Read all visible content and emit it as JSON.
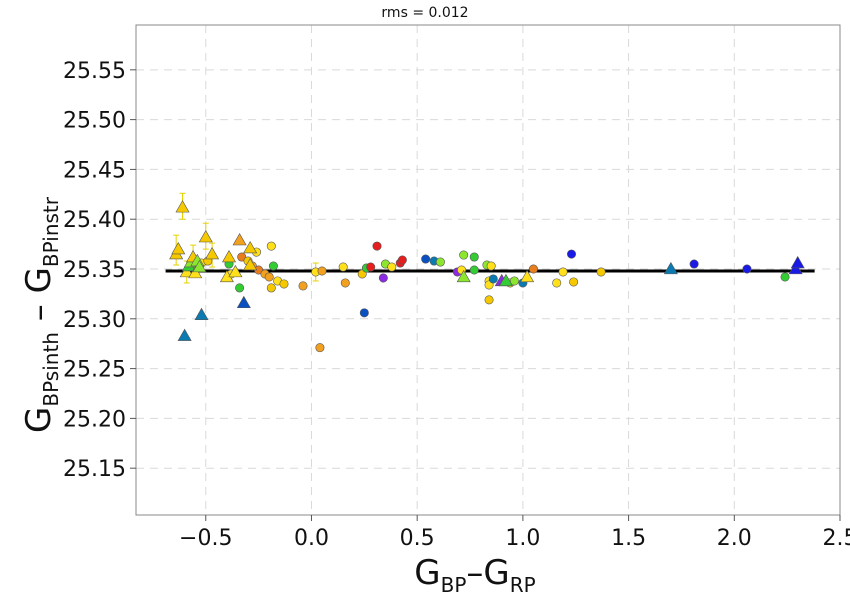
{
  "chart_data": {
    "type": "scatter",
    "title": "rms = 0.012",
    "xlabel": {
      "main": "G",
      "sub1": "BP",
      "dash": "–",
      "main2": "G",
      "sub2": "RP"
    },
    "ylabel": {
      "main": "G",
      "sub1": "BPsinth",
      "dash": " – ",
      "main2": "G",
      "sub2": "BPinstr"
    },
    "xlim": [
      -0.83,
      2.5
    ],
    "ylim": [
      25.103,
      25.595
    ],
    "xticks": [
      -0.5,
      0.0,
      0.5,
      1.0,
      1.5,
      2.0,
      2.5
    ],
    "xtick_labels": [
      "−0.5",
      "0.0",
      "0.5",
      "1.0",
      "1.5",
      "2.0",
      "2.5"
    ],
    "yticks": [
      25.15,
      25.2,
      25.25,
      25.3,
      25.35,
      25.4,
      25.45,
      25.5,
      25.55
    ],
    "ytick_labels": [
      "25.15",
      "25.20",
      "25.25",
      "25.30",
      "25.35",
      "25.40",
      "25.45",
      "25.50",
      "25.55"
    ],
    "grid": true,
    "fit_line": {
      "x": [
        -0.69,
        2.38
      ],
      "y": [
        25.348,
        25.348
      ]
    },
    "colors": {
      "violet": "#8a2be2",
      "blue": "#1a1ae6",
      "dblue": "#0a50c0",
      "teal": "#0a7ab0",
      "green": "#33cc33",
      "lgreen": "#8ce62e",
      "yellow": "#ffe01a",
      "gold": "#f5c800",
      "orange": "#f2a020",
      "dorange": "#e87d1e",
      "red": "#e61e1e",
      "line": "#000000",
      "grid": "#d9d9d9",
      "frame": "#888888",
      "errbar": "#e6d200"
    },
    "series": [
      {
        "name": "circles",
        "marker": "circle",
        "points": [
          {
            "x": -0.55,
            "y": 25.35,
            "c": "lgreen"
          },
          {
            "x": -0.52,
            "y": 25.356,
            "c": "yellow"
          },
          {
            "x": -0.49,
            "y": 25.358,
            "c": "gold"
          },
          {
            "x": -0.39,
            "y": 25.355,
            "c": "green"
          },
          {
            "x": -0.38,
            "y": 25.345,
            "c": "yellow"
          },
          {
            "x": -0.34,
            "y": 25.331,
            "c": "green"
          },
          {
            "x": -0.33,
            "y": 25.362,
            "c": "dorange"
          },
          {
            "x": -0.3,
            "y": 25.358,
            "c": "gold"
          },
          {
            "x": -0.28,
            "y": 25.353,
            "c": "orange"
          },
          {
            "x": -0.26,
            "y": 25.367,
            "c": "yellow"
          },
          {
            "x": -0.25,
            "y": 25.349,
            "c": "dorange"
          },
          {
            "x": -0.22,
            "y": 25.345,
            "c": "orange"
          },
          {
            "x": -0.2,
            "y": 25.342,
            "c": "orange"
          },
          {
            "x": -0.19,
            "y": 25.373,
            "c": "yellow"
          },
          {
            "x": -0.19,
            "y": 25.331,
            "c": "gold"
          },
          {
            "x": -0.18,
            "y": 25.353,
            "c": "green"
          },
          {
            "x": -0.16,
            "y": 25.338,
            "c": "yellow"
          },
          {
            "x": -0.13,
            "y": 25.335,
            "c": "gold"
          },
          {
            "x": -0.04,
            "y": 25.333,
            "c": "orange"
          },
          {
            "x": 0.02,
            "y": 25.347,
            "c": "yellow"
          },
          {
            "x": 0.04,
            "y": 25.271,
            "c": "orange"
          },
          {
            "x": 0.05,
            "y": 25.348,
            "c": "orange"
          },
          {
            "x": 0.15,
            "y": 25.352,
            "c": "yellow"
          },
          {
            "x": 0.16,
            "y": 25.336,
            "c": "orange"
          },
          {
            "x": 0.24,
            "y": 25.345,
            "c": "gold"
          },
          {
            "x": 0.25,
            "y": 25.306,
            "c": "dblue"
          },
          {
            "x": 0.26,
            "y": 25.351,
            "c": "green"
          },
          {
            "x": 0.28,
            "y": 25.352,
            "c": "red"
          },
          {
            "x": 0.31,
            "y": 25.373,
            "c": "red"
          },
          {
            "x": 0.34,
            "y": 25.341,
            "c": "violet"
          },
          {
            "x": 0.35,
            "y": 25.355,
            "c": "lgreen"
          },
          {
            "x": 0.38,
            "y": 25.352,
            "c": "yellow"
          },
          {
            "x": 0.42,
            "y": 25.356,
            "c": "red"
          },
          {
            "x": 0.43,
            "y": 25.359,
            "c": "red"
          },
          {
            "x": 0.54,
            "y": 25.36,
            "c": "dblue"
          },
          {
            "x": 0.58,
            "y": 25.358,
            "c": "teal"
          },
          {
            "x": 0.61,
            "y": 25.357,
            "c": "lgreen"
          },
          {
            "x": 0.69,
            "y": 25.347,
            "c": "violet"
          },
          {
            "x": 0.71,
            "y": 25.349,
            "c": "yellow"
          },
          {
            "x": 0.72,
            "y": 25.364,
            "c": "lgreen"
          },
          {
            "x": 0.77,
            "y": 25.362,
            "c": "green"
          },
          {
            "x": 0.77,
            "y": 25.349,
            "c": "green"
          },
          {
            "x": 0.83,
            "y": 25.354,
            "c": "lgreen"
          },
          {
            "x": 0.84,
            "y": 25.338,
            "c": "yellow"
          },
          {
            "x": 0.84,
            "y": 25.334,
            "c": "yellow"
          },
          {
            "x": 0.84,
            "y": 25.319,
            "c": "gold"
          },
          {
            "x": 0.85,
            "y": 25.353,
            "c": "yellow"
          },
          {
            "x": 0.86,
            "y": 25.34,
            "c": "teal"
          },
          {
            "x": 0.94,
            "y": 25.336,
            "c": "yellow"
          },
          {
            "x": 0.96,
            "y": 25.338,
            "c": "lgreen"
          },
          {
            "x": 1.0,
            "y": 25.336,
            "c": "teal"
          },
          {
            "x": 1.05,
            "y": 25.35,
            "c": "dorange"
          },
          {
            "x": 1.16,
            "y": 25.336,
            "c": "yellow"
          },
          {
            "x": 1.19,
            "y": 25.347,
            "c": "yellow"
          },
          {
            "x": 1.23,
            "y": 25.365,
            "c": "blue"
          },
          {
            "x": 1.24,
            "y": 25.337,
            "c": "gold"
          },
          {
            "x": 1.37,
            "y": 25.347,
            "c": "gold"
          },
          {
            "x": 1.81,
            "y": 25.355,
            "c": "blue"
          },
          {
            "x": 2.06,
            "y": 25.35,
            "c": "blue"
          },
          {
            "x": 2.24,
            "y": 25.342,
            "c": "green"
          }
        ]
      },
      {
        "name": "triangles",
        "marker": "triangle",
        "points": [
          {
            "x": -0.64,
            "y": 25.365,
            "c": "gold"
          },
          {
            "x": -0.63,
            "y": 25.37,
            "c": "gold"
          },
          {
            "x": -0.61,
            "y": 25.412,
            "c": "gold"
          },
          {
            "x": -0.6,
            "y": 25.283,
            "c": "teal"
          },
          {
            "x": -0.59,
            "y": 25.347,
            "c": "yellow"
          },
          {
            "x": -0.58,
            "y": 25.353,
            "c": "green"
          },
          {
            "x": -0.57,
            "y": 25.357,
            "c": "lgreen"
          },
          {
            "x": -0.56,
            "y": 25.362,
            "c": "gold"
          },
          {
            "x": -0.55,
            "y": 25.346,
            "c": "yellow"
          },
          {
            "x": -0.54,
            "y": 25.358,
            "c": "lgreen"
          },
          {
            "x": -0.53,
            "y": 25.352,
            "c": "lgreen"
          },
          {
            "x": -0.52,
            "y": 25.304,
            "c": "teal"
          },
          {
            "x": -0.5,
            "y": 25.382,
            "c": "gold"
          },
          {
            "x": -0.47,
            "y": 25.365,
            "c": "gold"
          },
          {
            "x": -0.4,
            "y": 25.342,
            "c": "yellow"
          },
          {
            "x": -0.39,
            "y": 25.362,
            "c": "gold"
          },
          {
            "x": -0.36,
            "y": 25.347,
            "c": "yellow"
          },
          {
            "x": -0.34,
            "y": 25.379,
            "c": "orange"
          },
          {
            "x": -0.32,
            "y": 25.316,
            "c": "dblue"
          },
          {
            "x": -0.29,
            "y": 25.371,
            "c": "gold"
          },
          {
            "x": -0.29,
            "y": 25.354,
            "c": "gold"
          },
          {
            "x": 0.72,
            "y": 25.342,
            "c": "lgreen"
          },
          {
            "x": 0.9,
            "y": 25.338,
            "c": "violet"
          },
          {
            "x": 0.92,
            "y": 25.338,
            "c": "green"
          },
          {
            "x": 1.02,
            "y": 25.342,
            "c": "yellow"
          },
          {
            "x": 1.7,
            "y": 25.35,
            "c": "teal"
          },
          {
            "x": 2.29,
            "y": 25.35,
            "c": "blue"
          },
          {
            "x": 2.3,
            "y": 25.356,
            "c": "blue"
          }
        ]
      }
    ],
    "error_bars": [
      {
        "x": -0.61,
        "y0": 25.4,
        "y1": 25.426
      },
      {
        "x": -0.64,
        "y0": 25.354,
        "y1": 25.384
      },
      {
        "x": -0.5,
        "y0": 25.37,
        "y1": 25.396
      },
      {
        "x": -0.56,
        "y0": 25.35,
        "y1": 25.374
      },
      {
        "x": -0.47,
        "y0": 25.352,
        "y1": 25.376
      },
      {
        "x": 0.02,
        "y0": 25.338,
        "y1": 25.356
      },
      {
        "x": -0.59,
        "y0": 25.336,
        "y1": 25.358
      }
    ]
  }
}
